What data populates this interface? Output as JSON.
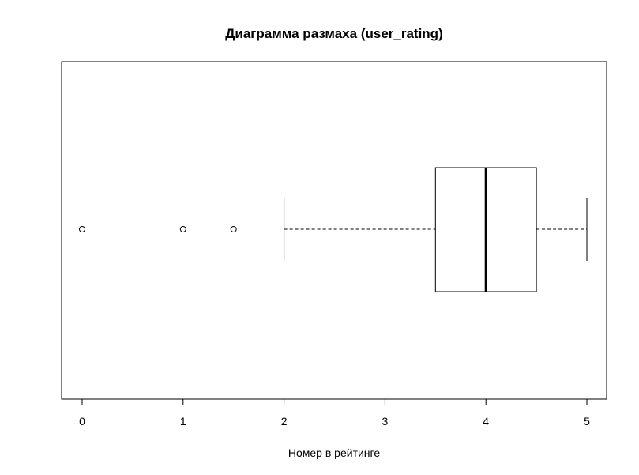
{
  "chart_data": {
    "type": "boxplot",
    "orientation": "horizontal",
    "title": "Диаграмма размаха (user_rating)",
    "xlabel": "Номер в рейтинге",
    "ylabel": "",
    "xlim": [
      0,
      5
    ],
    "x_ticks": [
      0,
      1,
      2,
      3,
      4,
      5
    ],
    "x_tick_labels": [
      "0",
      "1",
      "2",
      "3",
      "4",
      "5"
    ],
    "grid": false,
    "box": {
      "whisker_low": 2.0,
      "q1": 3.5,
      "median": 4.0,
      "q3": 4.5,
      "whisker_high": 5.0,
      "outliers": [
        0,
        1,
        1.5
      ]
    }
  }
}
